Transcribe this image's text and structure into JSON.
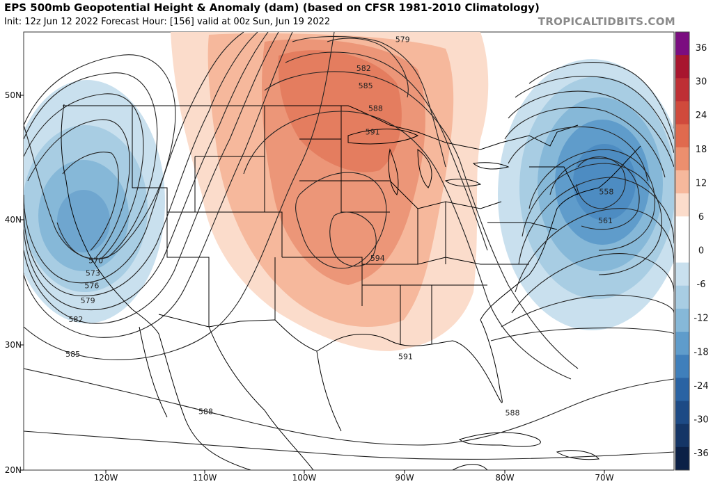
{
  "header": {
    "title": "EPS 500mb Geopotential Height & Anomaly (dam) (based on CFSR 1981-2010 Climatology)",
    "subtitle": "Init: 12z Jun 12 2022   Forecast Hour: [156]   valid at 00z Sun, Jun 19 2022",
    "source": "TROPICALTIDBITS.COM"
  },
  "map": {
    "lon_labels": [
      "120W",
      "110W",
      "100W",
      "90W",
      "80W",
      "70W"
    ],
    "lat_labels": [
      "20N",
      "30N",
      "40N",
      "50N"
    ],
    "contour_labels": [
      {
        "text": "579",
        "lon": -90.3,
        "lat": 54.5
      },
      {
        "text": "582",
        "lon": -94.2,
        "lat": 52.2
      },
      {
        "text": "585",
        "lon": -94.0,
        "lat": 50.8
      },
      {
        "text": "588",
        "lon": -93.0,
        "lat": 49.0
      },
      {
        "text": "591",
        "lon": -93.3,
        "lat": 47.1
      },
      {
        "text": "594",
        "lon": -92.8,
        "lat": 37.0
      },
      {
        "text": "591",
        "lon": -90.0,
        "lat": 29.1
      },
      {
        "text": "588",
        "lon": -79.3,
        "lat": 24.6
      },
      {
        "text": "588",
        "lon": -110.0,
        "lat": 24.7
      },
      {
        "text": "585",
        "lon": -123.3,
        "lat": 29.3
      },
      {
        "text": "582",
        "lon": -123.0,
        "lat": 32.1
      },
      {
        "text": "579",
        "lon": -121.8,
        "lat": 33.6
      },
      {
        "text": "576",
        "lon": -121.4,
        "lat": 34.8
      },
      {
        "text": "573",
        "lon": -121.3,
        "lat": 35.8
      },
      {
        "text": "570",
        "lon": -121.0,
        "lat": 36.8
      },
      {
        "text": "558",
        "lon": -69.9,
        "lat": 42.3
      },
      {
        "text": "561",
        "lon": -70.0,
        "lat": 40.0
      }
    ]
  },
  "colorbar": {
    "labels": [
      "36",
      "30",
      "24",
      "18",
      "12",
      "6",
      "0",
      "-6",
      "-12",
      "-18",
      "-24",
      "-30",
      "-36"
    ],
    "colors": [
      "#7b0d80",
      "#a8152e",
      "#be2f34",
      "#d04a3c",
      "#e06a4e",
      "#ec8f6e",
      "#f6b89c",
      "#fbdccb",
      "#ffffff",
      "#ffffff",
      "#c9e0ee",
      "#a8cde3",
      "#86b8d8",
      "#5f9ccb",
      "#3f7fbb",
      "#2a63a3",
      "#1d4a85",
      "#143566",
      "#0b2046"
    ]
  }
}
